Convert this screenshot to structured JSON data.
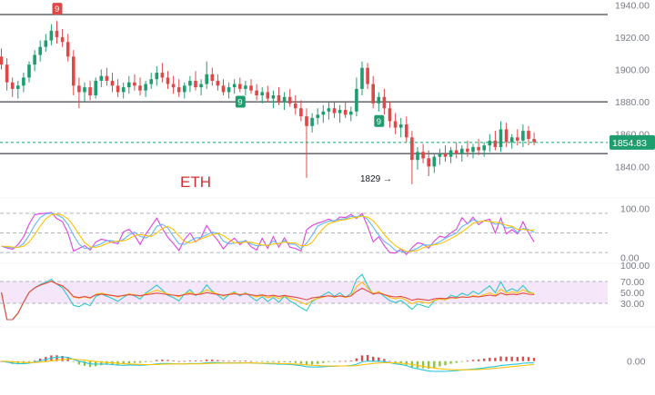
{
  "chart_data": {
    "type": "candlestick",
    "symbol": "ETH",
    "price_axis": {
      "ticks": [
        "1940.00",
        "1920.00",
        "1900.00",
        "1880.00",
        "1860.00",
        "1840.00"
      ],
      "range": [
        1825,
        1943
      ]
    },
    "current_price": {
      "value": 1854.83,
      "label": "1854.83"
    },
    "horizontal_levels": [
      1934,
      1880,
      1848
    ],
    "low_annotation": {
      "text": "1829 →",
      "value": 1829
    },
    "td_markers": [
      {
        "text": "9",
        "color": "#e04848",
        "placement": "above"
      },
      {
        "text": "9",
        "color": "#1e9e6e",
        "placement": "below"
      },
      {
        "text": "9",
        "color": "#1e9e6e",
        "placement": "below"
      }
    ],
    "ohlc": [
      [
        1908,
        1913,
        1900,
        1903
      ],
      [
        1903,
        1907,
        1887,
        1892
      ],
      [
        1892,
        1895,
        1883,
        1888
      ],
      [
        1888,
        1893,
        1882,
        1890
      ],
      [
        1890,
        1898,
        1886,
        1895
      ],
      [
        1895,
        1905,
        1892,
        1903
      ],
      [
        1903,
        1912,
        1899,
        1909
      ],
      [
        1909,
        1918,
        1905,
        1914
      ],
      [
        1914,
        1922,
        1911,
        1918
      ],
      [
        1918,
        1928,
        1915,
        1924
      ],
      [
        1924,
        1930,
        1916,
        1920
      ],
      [
        1920,
        1925,
        1914,
        1917
      ],
      [
        1917,
        1922,
        1905,
        1908
      ],
      [
        1908,
        1912,
        1884,
        1890
      ],
      [
        1890,
        1895,
        1876,
        1886
      ],
      [
        1886,
        1892,
        1880,
        1889
      ],
      [
        1889,
        1893,
        1881,
        1884
      ],
      [
        1884,
        1895,
        1882,
        1893
      ],
      [
        1893,
        1900,
        1889,
        1896
      ],
      [
        1896,
        1901,
        1890,
        1893
      ],
      [
        1893,
        1898,
        1886,
        1890
      ],
      [
        1890,
        1894,
        1883,
        1886
      ],
      [
        1886,
        1892,
        1882,
        1889
      ],
      [
        1889,
        1896,
        1885,
        1892
      ],
      [
        1892,
        1897,
        1887,
        1890
      ],
      [
        1890,
        1895,
        1884,
        1887
      ],
      [
        1887,
        1893,
        1883,
        1891
      ],
      [
        1891,
        1898,
        1888,
        1894
      ],
      [
        1894,
        1902,
        1890,
        1898
      ],
      [
        1898,
        1904,
        1892,
        1895
      ],
      [
        1895,
        1899,
        1888,
        1891
      ],
      [
        1891,
        1896,
        1885,
        1889
      ],
      [
        1889,
        1894,
        1883,
        1886
      ],
      [
        1886,
        1892,
        1882,
        1890
      ],
      [
        1890,
        1896,
        1886,
        1893
      ],
      [
        1893,
        1899,
        1887,
        1889
      ],
      [
        1889,
        1894,
        1884,
        1891
      ],
      [
        1891,
        1905,
        1888,
        1897
      ],
      [
        1897,
        1901,
        1890,
        1893
      ],
      [
        1893,
        1897,
        1887,
        1890
      ],
      [
        1890,
        1894,
        1884,
        1886
      ],
      [
        1886,
        1892,
        1882,
        1889
      ],
      [
        1889,
        1894,
        1885,
        1891
      ],
      [
        1891,
        1895,
        1886,
        1888
      ],
      [
        1888,
        1893,
        1884,
        1890
      ],
      [
        1890,
        1894,
        1885,
        1887
      ],
      [
        1887,
        1891,
        1881,
        1884
      ],
      [
        1884,
        1889,
        1879,
        1886
      ],
      [
        1886,
        1890,
        1880,
        1882
      ],
      [
        1882,
        1887,
        1876,
        1884
      ],
      [
        1884,
        1889,
        1878,
        1880
      ],
      [
        1880,
        1886,
        1875,
        1883
      ],
      [
        1883,
        1888,
        1877,
        1879
      ],
      [
        1879,
        1884,
        1872,
        1876
      ],
      [
        1876,
        1881,
        1868,
        1871
      ],
      [
        1871,
        1876,
        1833,
        1865
      ],
      [
        1865,
        1873,
        1861,
        1870
      ],
      [
        1870,
        1876,
        1866,
        1872
      ],
      [
        1872,
        1878,
        1867,
        1874
      ],
      [
        1874,
        1880,
        1869,
        1876
      ],
      [
        1876,
        1880,
        1870,
        1873
      ],
      [
        1873,
        1878,
        1867,
        1875
      ],
      [
        1875,
        1880,
        1870,
        1872
      ],
      [
        1872,
        1877,
        1868,
        1874
      ],
      [
        1874,
        1895,
        1871,
        1888
      ],
      [
        1888,
        1905,
        1884,
        1901
      ],
      [
        1901,
        1904,
        1888,
        1891
      ],
      [
        1891,
        1896,
        1876,
        1879
      ],
      [
        1879,
        1886,
        1874,
        1883
      ],
      [
        1883,
        1888,
        1872,
        1876
      ],
      [
        1876,
        1880,
        1864,
        1868
      ],
      [
        1868,
        1873,
        1860,
        1864
      ],
      [
        1864,
        1870,
        1858,
        1866
      ],
      [
        1866,
        1871,
        1855,
        1858
      ],
      [
        1858,
        1862,
        1829,
        1844
      ],
      [
        1844,
        1852,
        1838,
        1849
      ],
      [
        1849,
        1854,
        1842,
        1845
      ],
      [
        1845,
        1850,
        1834,
        1840
      ],
      [
        1840,
        1848,
        1836,
        1846
      ],
      [
        1846,
        1851,
        1841,
        1848
      ],
      [
        1848,
        1853,
        1843,
        1846
      ],
      [
        1846,
        1852,
        1842,
        1850
      ],
      [
        1850,
        1855,
        1845,
        1848
      ],
      [
        1848,
        1853,
        1843,
        1851
      ],
      [
        1851,
        1856,
        1846,
        1849
      ],
      [
        1849,
        1854,
        1845,
        1852
      ],
      [
        1852,
        1857,
        1847,
        1850
      ],
      [
        1850,
        1855,
        1846,
        1853
      ],
      [
        1853,
        1860,
        1849,
        1856
      ],
      [
        1856,
        1862,
        1850,
        1852
      ],
      [
        1852,
        1868,
        1849,
        1863
      ],
      [
        1863,
        1867,
        1852,
        1855
      ],
      [
        1855,
        1860,
        1851,
        1858
      ],
      [
        1858,
        1863,
        1853,
        1856
      ],
      [
        1856,
        1866,
        1852,
        1862
      ],
      [
        1862,
        1865,
        1853,
        1857
      ],
      [
        1857,
        1861,
        1853,
        1855
      ]
    ],
    "panels": [
      {
        "name": "stochastic",
        "ticks": [
          "100.00",
          "0.00"
        ],
        "range": [
          -12,
          110
        ],
        "guides": [
          90,
          50,
          10
        ],
        "series_colors": [
          "#e040e0",
          "#64b5f6",
          "#ffc107"
        ]
      },
      {
        "name": "rsi",
        "ticks": [
          "100.00",
          "70.00",
          "50.00",
          "30.00"
        ],
        "range": [
          0,
          100
        ],
        "band": [
          30,
          70
        ],
        "band_color": "#f0d9f7",
        "series_colors": [
          "#2ec7c9",
          "#ffc107",
          "#e04848"
        ]
      },
      {
        "name": "macd",
        "ticks": [
          "0.00"
        ],
        "range": [
          -30,
          26
        ],
        "series_colors": [
          "#26c6da",
          "#ffc107"
        ],
        "hist_colors": [
          "#e04848",
          "#8bc34a"
        ]
      }
    ]
  }
}
